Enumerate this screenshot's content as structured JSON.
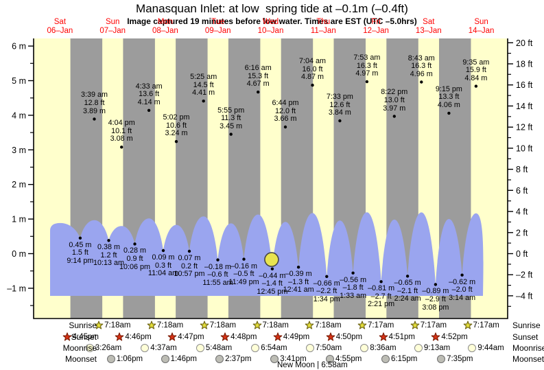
{
  "header": {
    "title": "Manasquan Inlet: at low  spring tide at –0.1m (–0.4ft)",
    "subtitle": "Image captured 19 minutes before low water. Times are EST (UTC –5.0hrs)"
  },
  "chart_data": {
    "type": "area",
    "title": "Manasquan Inlet: at low  spring tide at –0.1m (–0.4ft)",
    "days": [
      {
        "name": "Sat",
        "date": "06–Jan"
      },
      {
        "name": "Sun",
        "date": "07–Jan"
      },
      {
        "name": "Mon",
        "date": "08–Jan"
      },
      {
        "name": "Tue",
        "date": "09–Jan"
      },
      {
        "name": "Wed",
        "date": "10–Jan"
      },
      {
        "name": "Thu",
        "date": "11–Jan"
      },
      {
        "name": "Fri",
        "date": "12–Jan"
      },
      {
        "name": "Sat",
        "date": "13–Jan"
      },
      {
        "name": "Sun",
        "date": "14–Jan"
      }
    ],
    "y_axis_left": {
      "unit": "m",
      "ticks": [
        "6 m",
        "5 m",
        "4 m",
        "3 m",
        "2 m",
        "1 m",
        "0 m",
        "–1 m"
      ]
    },
    "y_axis_right": {
      "unit": "ft",
      "ticks": [
        "20 ft",
        "18 ft",
        "16 ft",
        "14 ft",
        "12 ft",
        "10 ft",
        "8 ft",
        "6 ft",
        "4 ft",
        "2 ft",
        "0 ft",
        "–2 ft",
        "–4 ft"
      ]
    },
    "y_range_m": [
      -1.6,
      6.2
    ],
    "high_tides": [
      {
        "day": 1,
        "time": "3:39 am",
        "ft": "12.8 ft",
        "m": "3.89 m"
      },
      {
        "day": 1,
        "time": "4:04 pm",
        "ft": "10.1 ft",
        "m": "3.08 m"
      },
      {
        "day": 2,
        "time": "4:33 am",
        "ft": "13.6 ft",
        "m": "4.14 m"
      },
      {
        "day": 2,
        "time": "5:02 pm",
        "ft": "10.6 ft",
        "m": "3.24 m"
      },
      {
        "day": 3,
        "time": "5:25 am",
        "ft": "14.5 ft",
        "m": "4.41 m"
      },
      {
        "day": 3,
        "time": "5:55 pm",
        "ft": "11.3 ft",
        "m": "3.45 m"
      },
      {
        "day": 4,
        "time": "6:16 am",
        "ft": "15.3 ft",
        "m": "4.67 m"
      },
      {
        "day": 4,
        "time": "6:44 pm",
        "ft": "12.0 ft",
        "m": "3.66 m"
      },
      {
        "day": 5,
        "time": "7:04 am",
        "ft": "16.0 ft",
        "m": "4.87 m"
      },
      {
        "day": 5,
        "time": "7:33 pm",
        "ft": "12.6 ft",
        "m": "3.84 m"
      },
      {
        "day": 6,
        "time": "7:53 am",
        "ft": "16.3 ft",
        "m": "4.97 m"
      },
      {
        "day": 6,
        "time": "8:22 pm",
        "ft": "13.0 ft",
        "m": "3.97 m"
      },
      {
        "day": 7,
        "time": "8:43 am",
        "ft": "16.3 ft",
        "m": "4.96 m"
      },
      {
        "day": 7,
        "time": "9:15 pm",
        "ft": "13.3 ft",
        "m": "4.06 m"
      },
      {
        "day": 8,
        "time": "9:35 am",
        "ft": "15.9 ft",
        "m": "4.84 m"
      }
    ],
    "low_tides": [
      {
        "day": 0,
        "time": "9:14 pm",
        "ft": "1.5 ft",
        "m": "0.45 m"
      },
      {
        "day": 1,
        "time": "10:13 am",
        "ft": "1.2 ft",
        "m": "0.38 m"
      },
      {
        "day": 1,
        "time": "10:06 pm",
        "ft": "0.9 ft",
        "m": "0.28 m"
      },
      {
        "day": 2,
        "time": "11:04 am",
        "ft": "0.3 ft",
        "m": "0.09 m"
      },
      {
        "day": 2,
        "time": "10:57 pm",
        "ft": "0.2 ft",
        "m": "0.07 m"
      },
      {
        "day": 3,
        "time": "11:55 am",
        "ft": "–0.6 ft",
        "m": "–0.18 m"
      },
      {
        "day": 3,
        "time": "11:49 pm",
        "ft": "–0.5 ft",
        "m": "–0.16 m"
      },
      {
        "day": 4,
        "time": "12:45 pm",
        "ft": "–1.4 ft",
        "m": "–0.44 m"
      },
      {
        "day": 5,
        "time": "12:41 am",
        "ft": "–1.3 ft",
        "m": "–0.39 m"
      },
      {
        "day": 5,
        "time": "1:34 pm",
        "ft": "–2.2 ft",
        "m": "–0.66 m"
      },
      {
        "day": 6,
        "time": "1:33 am",
        "ft": "–1.8 ft",
        "m": "–0.56 m"
      },
      {
        "day": 6,
        "time": "2:21 pm",
        "ft": "–2.7 ft",
        "m": "–0.81 m"
      },
      {
        "day": 7,
        "time": "2:24 am",
        "ft": "–2.1 ft",
        "m": "–0.65 m"
      },
      {
        "day": 7,
        "time": "3:08 pm",
        "ft": "–2.9 ft",
        "m": "–0.89 m"
      },
      {
        "day": 8,
        "time": "3:14 am",
        "ft": "–2.0 ft",
        "m": "–0.62 m"
      }
    ],
    "capture_marker": {
      "day": 4,
      "hour": 12.43,
      "level_m": -0.17
    },
    "colors": {
      "day_band": "#ffffcc",
      "night_band": "#9c9c9c",
      "water": "#9aa5ef",
      "day_label": "#ff0000",
      "marker_fill": "#e8e44f",
      "sunrise_star": "#e2dd3a",
      "sunrise_star_edge": "#6e6414",
      "sunset_star": "#d63114",
      "sunset_star_edge": "#7c1c05",
      "moonrise_fill": "#ffffd8",
      "moonrise_edge": "#8a8a8a",
      "moonset_fill": "#bdbdb5",
      "moonset_edge": "#6f6f6f"
    }
  },
  "astro": {
    "row_labels": [
      "Sunrise",
      "Sunset",
      "Moonrise",
      "Moonset"
    ],
    "sunrise": [
      {
        "day": 1,
        "time": "7:18am"
      },
      {
        "day": 2,
        "time": "7:18am"
      },
      {
        "day": 3,
        "time": "7:18am"
      },
      {
        "day": 4,
        "time": "7:18am"
      },
      {
        "day": 5,
        "time": "7:18am"
      },
      {
        "day": 6,
        "time": "7:17am"
      },
      {
        "day": 7,
        "time": "7:17am"
      },
      {
        "day": 8,
        "time": "7:17am"
      }
    ],
    "sunset": [
      {
        "day": 0,
        "time": "4:45pm"
      },
      {
        "day": 1,
        "time": "4:46pm"
      },
      {
        "day": 2,
        "time": "4:47pm"
      },
      {
        "day": 3,
        "time": "4:48pm"
      },
      {
        "day": 4,
        "time": "4:49pm"
      },
      {
        "day": 5,
        "time": "4:50pm"
      },
      {
        "day": 6,
        "time": "4:51pm"
      },
      {
        "day": 7,
        "time": "4:52pm"
      }
    ],
    "moonrise": [
      {
        "day": 1,
        "time": "3:26am"
      },
      {
        "day": 2,
        "time": "4:37am"
      },
      {
        "day": 3,
        "time": "5:48am"
      },
      {
        "day": 4,
        "time": "6:54am"
      },
      {
        "day": 5,
        "time": "7:50am"
      },
      {
        "day": 6,
        "time": "8:36am"
      },
      {
        "day": 7,
        "time": "9:13am"
      },
      {
        "day": 8,
        "time": "9:44am"
      }
    ],
    "moonset": [
      {
        "day": 1,
        "time": "1:06pm"
      },
      {
        "day": 2,
        "time": "1:46pm"
      },
      {
        "day": 3,
        "time": "2:37pm"
      },
      {
        "day": 4,
        "time": "3:41pm"
      },
      {
        "day": 5,
        "time": "4:55pm"
      },
      {
        "day": 6,
        "time": "6:15pm"
      },
      {
        "day": 7,
        "time": "7:35pm"
      }
    ],
    "new_moon": "New Moon | 6:58am"
  }
}
